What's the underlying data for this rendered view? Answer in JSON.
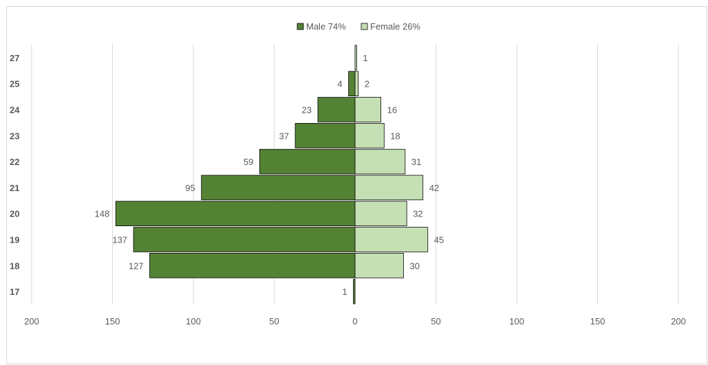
{
  "chart_data": {
    "type": "bar",
    "orientation": "horizontal",
    "layout": "population-pyramid",
    "categories": [
      "17",
      "18",
      "19",
      "20",
      "21",
      "22",
      "23",
      "24",
      "25",
      "27"
    ],
    "series": [
      {
        "name": "Male 74%",
        "side": "left",
        "color": "#548235",
        "values": [
          1,
          127,
          137,
          148,
          95,
          59,
          37,
          23,
          4,
          null
        ]
      },
      {
        "name": "Female 26%",
        "side": "right",
        "color": "#c5e0b4",
        "values": [
          null,
          30,
          45,
          32,
          42,
          31,
          18,
          16,
          2,
          1
        ]
      }
    ],
    "xlim": [
      -200,
      200
    ],
    "x_ticks": [
      "200",
      "150",
      "100",
      "50",
      "0",
      "50",
      "100",
      "150",
      "200"
    ],
    "title": "",
    "xlabel": "",
    "ylabel": "",
    "legend_position": "top-center",
    "grid": true,
    "bar_outline_color": "#000000",
    "grid_color": "#d9d9d9",
    "label_color": "#595959"
  }
}
